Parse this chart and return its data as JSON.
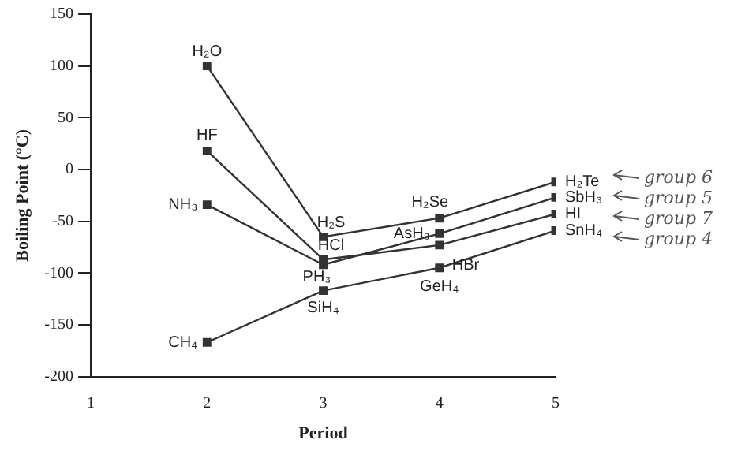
{
  "chart_data": {
    "type": "line",
    "xlabel": "Period",
    "ylabel": "Boiling Point (°C)",
    "x": [
      2,
      3,
      4,
      5
    ],
    "series": [
      {
        "color": "#333333",
        "values": [
          100,
          -65,
          -47,
          -12
        ]
      },
      {
        "color": "#333333",
        "values": [
          18,
          -87,
          -73,
          -43
        ]
      },
      {
        "color": "#333333",
        "values": [
          -34,
          -92,
          -62,
          -27
        ]
      },
      {
        "color": "#333333",
        "values": [
          -167,
          -117,
          -95,
          -59
        ]
      }
    ],
    "xlim": [
      1,
      5
    ],
    "xticks": [
      1,
      2,
      3,
      4,
      5
    ],
    "ylim": [
      -200,
      150
    ],
    "yticks": [
      -200,
      -150,
      -100,
      -50,
      0,
      50,
      100,
      150
    ],
    "grid": false,
    "legend": false,
    "marker": "square",
    "line_style": "solid",
    "annotations": [
      {
        "text": "H₂O",
        "x": 2,
        "y": 100
      },
      {
        "text": "HF",
        "x": 2,
        "y": 18
      },
      {
        "text": "NH₃",
        "x": 2,
        "y": -34
      },
      {
        "text": "CH₄",
        "x": 2,
        "y": -167
      },
      {
        "text": "H₂S",
        "x": 3,
        "y": -65
      },
      {
        "text": "HCl",
        "x": 3,
        "y": -87
      },
      {
        "text": "PH₃",
        "x": 3,
        "y": -92
      },
      {
        "text": "SiH₄",
        "x": 3,
        "y": -117
      },
      {
        "text": "H₂Se",
        "x": 4,
        "y": -47
      },
      {
        "text": "AsH₃",
        "x": 4,
        "y": -62
      },
      {
        "text": "HBr",
        "x": 4,
        "y": -73
      },
      {
        "text": "GeH₄",
        "x": 4,
        "y": -95
      },
      {
        "text": "H₂Te",
        "x": 5,
        "y": -12
      },
      {
        "text": "SbH₃",
        "x": 5,
        "y": -27
      },
      {
        "text": "HI",
        "x": 5,
        "y": -43
      },
      {
        "text": "SnH₄",
        "x": 5,
        "y": -59
      },
      "group 6",
      "group 5",
      "group 7",
      "group 4"
    ]
  }
}
